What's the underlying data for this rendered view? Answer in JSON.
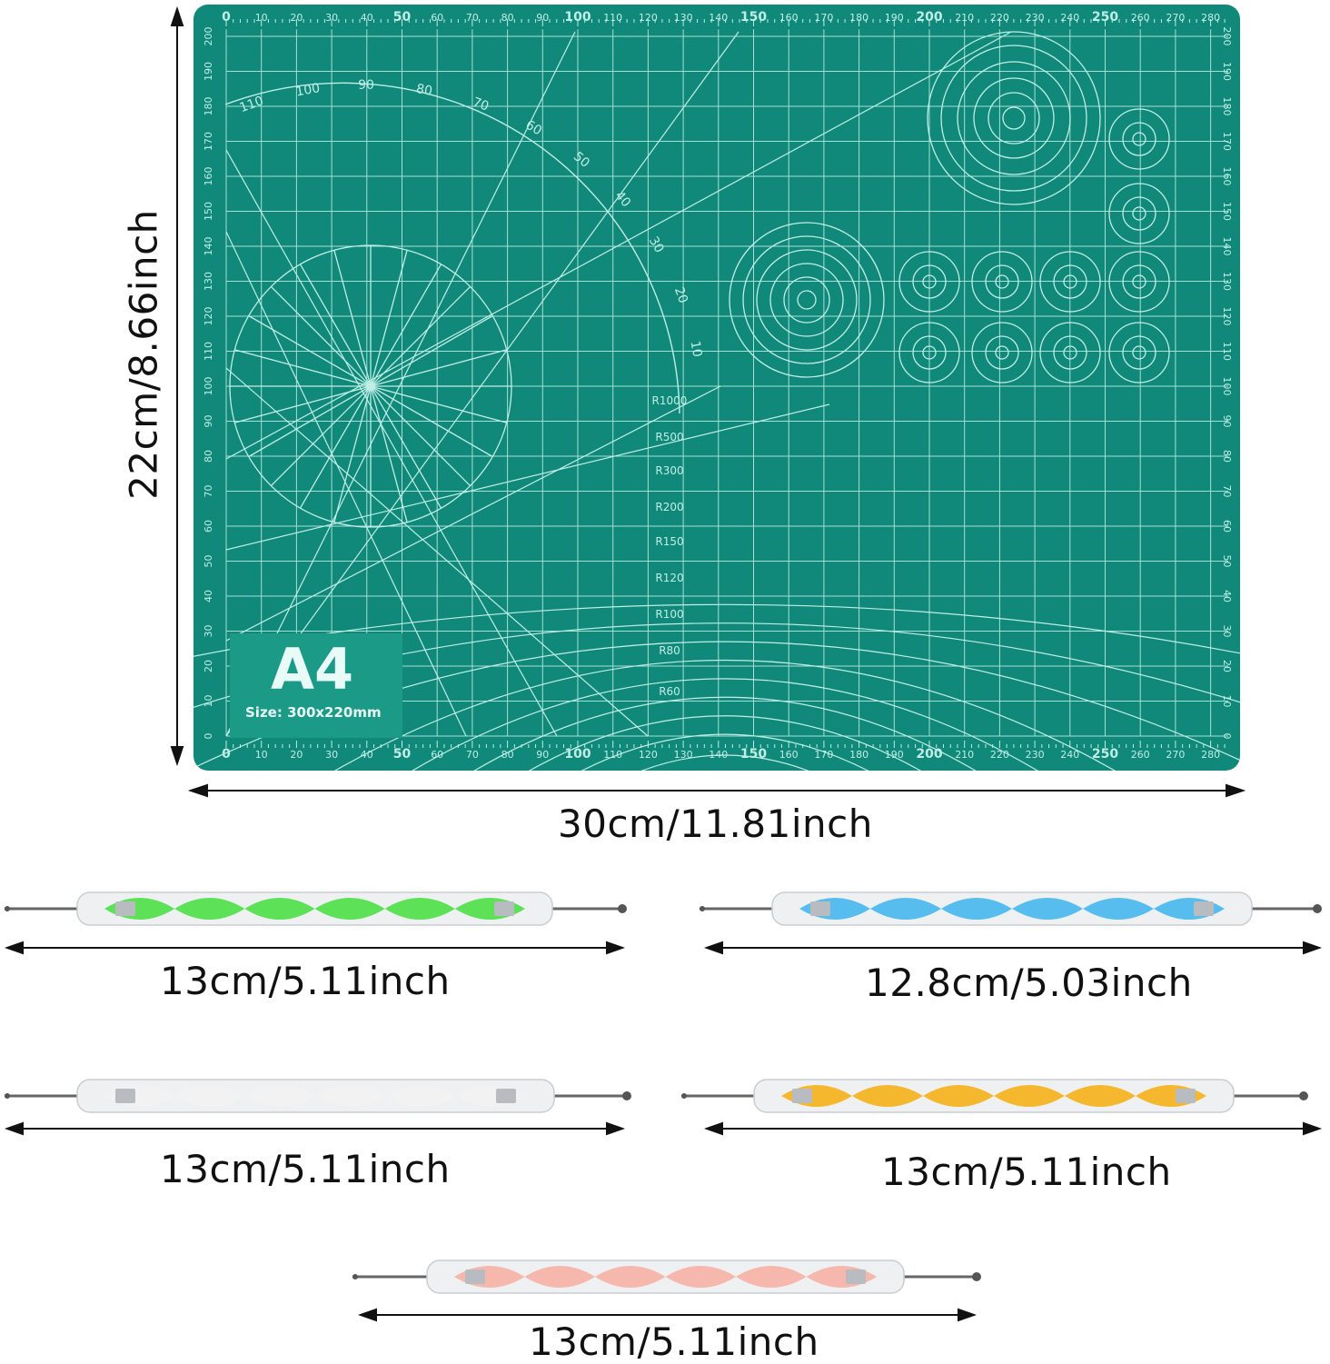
{
  "mat": {
    "label": "A4",
    "size_text": "Size: 300x220mm",
    "color": "#10897a",
    "line_color": "#bfeee6",
    "x_ticks": [
      "0",
      "10",
      "20",
      "30",
      "40",
      "50",
      "60",
      "70",
      "80",
      "90",
      "100",
      "110",
      "120",
      "130",
      "140",
      "150",
      "160",
      "170",
      "180",
      "190",
      "200",
      "210",
      "220",
      "230",
      "240",
      "250",
      "260",
      "270",
      "280"
    ],
    "y_ticks": [
      "0",
      "10",
      "20",
      "30",
      "40",
      "50",
      "60",
      "70",
      "80",
      "90",
      "100",
      "110",
      "120",
      "130",
      "140",
      "150",
      "160",
      "170",
      "180",
      "190",
      "200"
    ],
    "protractor_labels": [
      "110",
      "100",
      "90",
      "80",
      "70",
      "60",
      "50",
      "40",
      "30",
      "20",
      "10"
    ],
    "radius_labels": [
      "R1000",
      "R500",
      "R300",
      "R200",
      "R150",
      "R120",
      "R100",
      "R80",
      "R60"
    ]
  },
  "dimensions": {
    "height": "22cm/8.66inch",
    "width": "30cm/11.81inch"
  },
  "tools": [
    {
      "color": "#4fe04a",
      "label": "13cm/5.11inch"
    },
    {
      "color": "#4ab8ef",
      "label": "12.8cm/5.03inch"
    },
    {
      "color": "#f2f2f2",
      "label": "13cm/5.11inch"
    },
    {
      "color": "#f5b21c",
      "label": "13cm/5.11inch"
    },
    {
      "color": "#f6b2a6",
      "label": "13cm/5.11inch"
    }
  ]
}
